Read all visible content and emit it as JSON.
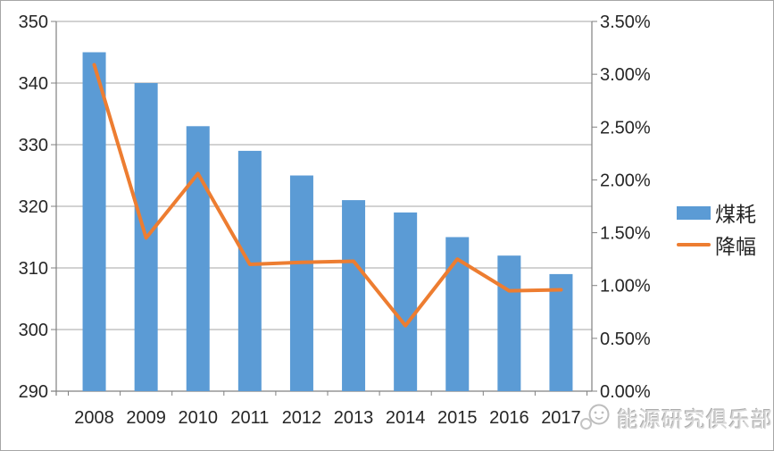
{
  "chart_data": {
    "type": "bar",
    "subtype": "combo-bar-line",
    "title": "",
    "categories": [
      "2008",
      "2009",
      "2010",
      "2011",
      "2012",
      "2013",
      "2014",
      "2015",
      "2016",
      "2017"
    ],
    "series": [
      {
        "name": "煤耗",
        "type": "bar",
        "axis": "left",
        "values": [
          345,
          340,
          333,
          329,
          325,
          321,
          319,
          315,
          312,
          309
        ]
      },
      {
        "name": "降幅",
        "type": "line",
        "axis": "right",
        "values": [
          3.09,
          1.45,
          2.06,
          1.2,
          1.22,
          1.23,
          0.62,
          1.25,
          0.95,
          0.96
        ],
        "unit": "%"
      }
    ],
    "left_axis": {
      "min": 290,
      "max": 350,
      "step": 10,
      "tick_labels": [
        "290",
        "300",
        "310",
        "320",
        "330",
        "340",
        "350"
      ]
    },
    "right_axis": {
      "min": 0,
      "max": 3.5,
      "step": 0.5,
      "tick_labels": [
        "0.00%",
        "0.50%",
        "1.00%",
        "1.50%",
        "2.00%",
        "2.50%",
        "3.00%",
        "3.50%"
      ]
    },
    "legend": {
      "position": "right"
    },
    "grid": true
  },
  "colors": {
    "bar": "#5B9BD5",
    "line": "#ED7D31",
    "gridline": "#A6A6A6",
    "axis": "#808080",
    "text": "#262626",
    "watermark": "#c9c9c9"
  },
  "watermark": {
    "text": "能源研究俱乐部"
  }
}
